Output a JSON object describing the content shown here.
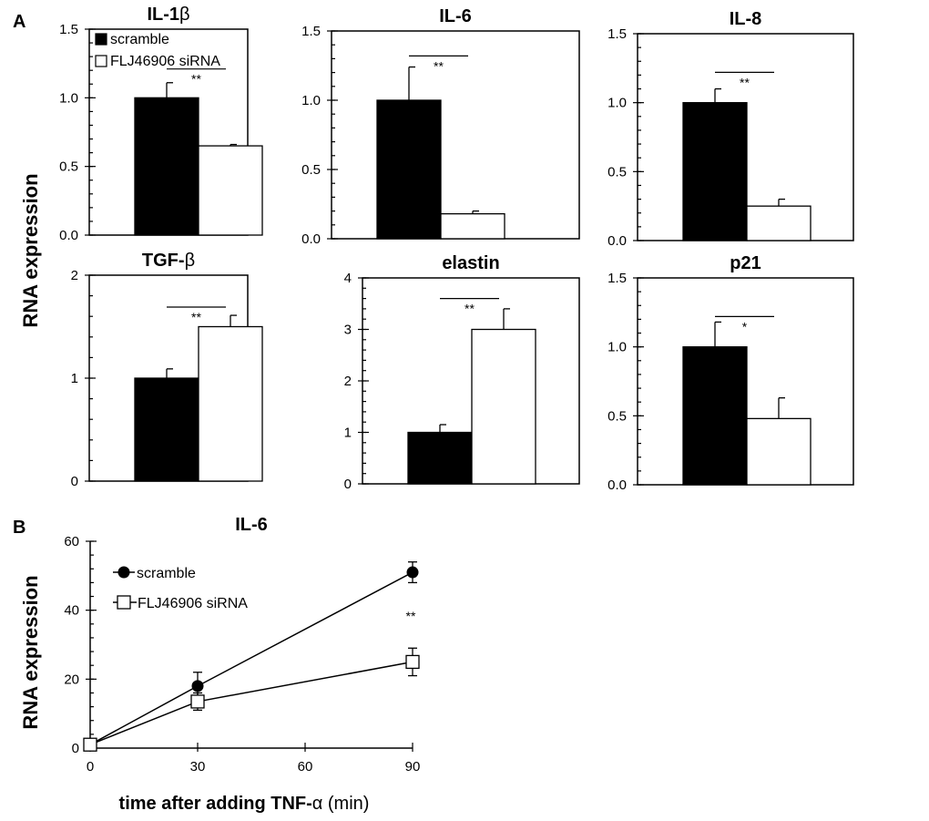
{
  "figure": {
    "panel_a_label": "A",
    "panel_b_label": "B",
    "y_axis_label": "RNA expression"
  },
  "legend_a": {
    "items": [
      {
        "label": "scramble",
        "fill": "#000000"
      },
      {
        "label": "FLJ46906 siRNA",
        "fill": "#ffffff"
      }
    ]
  },
  "chart_data": [
    {
      "type": "bar",
      "title": "IL-1",
      "title_symbol": "β",
      "categories": [
        "scramble",
        "FLJ46906 siRNA"
      ],
      "values": [
        1.0,
        0.65
      ],
      "errors": [
        0.11,
        0.01
      ],
      "ylim": [
        0,
        1.5
      ],
      "yticks": [
        "0.0",
        "0.5",
        "1.0",
        "1.5"
      ],
      "ytick_values": [
        0,
        0.5,
        1.0,
        1.5
      ],
      "minor_step": 0.1,
      "significance": "**",
      "sig_level": 1.21
    },
    {
      "type": "bar",
      "title": "IL-6",
      "title_symbol": "",
      "categories": [
        "scramble",
        "FLJ46906 siRNA"
      ],
      "values": [
        1.0,
        0.18
      ],
      "errors": [
        0.24,
        0.02
      ],
      "ylim": [
        0,
        1.5
      ],
      "yticks": [
        "0.0",
        "0.5",
        "1.0",
        "1.5"
      ],
      "ytick_values": [
        0,
        0.5,
        1.0,
        1.5
      ],
      "minor_step": 0.1,
      "significance": "**",
      "sig_level": 1.32
    },
    {
      "type": "bar",
      "title": "IL-8",
      "title_symbol": "",
      "categories": [
        "scramble",
        "FLJ46906 siRNA"
      ],
      "values": [
        1.0,
        0.25
      ],
      "errors": [
        0.1,
        0.05
      ],
      "ylim": [
        0,
        1.5
      ],
      "yticks": [
        "0.0",
        "0.5",
        "1.0",
        "1.5"
      ],
      "ytick_values": [
        0,
        0.5,
        1.0,
        1.5
      ],
      "minor_step": 0.1,
      "significance": "**",
      "sig_level": 1.22
    },
    {
      "type": "bar",
      "title": "TGF-",
      "title_symbol": "β",
      "categories": [
        "scramble",
        "FLJ46906 siRNA"
      ],
      "values": [
        1.0,
        1.5
      ],
      "errors": [
        0.09,
        0.11
      ],
      "ylim": [
        0,
        2
      ],
      "yticks": [
        "0",
        "1",
        "2"
      ],
      "ytick_values": [
        0,
        1,
        2
      ],
      "minor_step": 0.2,
      "significance": "**",
      "sig_level": 1.69
    },
    {
      "type": "bar",
      "title": "elastin",
      "title_symbol": "",
      "categories": [
        "scramble",
        "FLJ46906 siRNA"
      ],
      "values": [
        1.0,
        3.0
      ],
      "errors": [
        0.15,
        0.4
      ],
      "ylim": [
        0,
        4
      ],
      "yticks": [
        "0",
        "1",
        "2",
        "3",
        "4"
      ],
      "ytick_values": [
        0,
        1,
        2,
        3,
        4
      ],
      "minor_step": 0.2,
      "significance": "**",
      "sig_level": 3.6
    },
    {
      "type": "bar",
      "title": "p21",
      "title_symbol": "",
      "categories": [
        "scramble",
        "FLJ46906 siRNA"
      ],
      "values": [
        1.0,
        0.48
      ],
      "errors": [
        0.18,
        0.15
      ],
      "ylim": [
        0,
        1.5
      ],
      "yticks": [
        "0.0",
        "0.5",
        "1.0",
        "1.5"
      ],
      "ytick_values": [
        0,
        0.5,
        1.0,
        1.5
      ],
      "minor_step": 0.1,
      "significance": "*",
      "sig_level": 1.22
    },
    {
      "type": "line",
      "title": "IL-6",
      "x": [
        0,
        30,
        90
      ],
      "xticks": [
        0,
        30,
        60,
        90
      ],
      "xlim": [
        0,
        90
      ],
      "ylim": [
        0,
        60
      ],
      "yticks": [
        0,
        20,
        40,
        60
      ],
      "minor_step": 4,
      "xlabel_bold": "time after adding TNF-",
      "xlabel_symbol": "α",
      "xlabel_unit": " (min)",
      "ylabel": "RNA expression",
      "series": [
        {
          "name": "scramble",
          "marker": "circle",
          "values": [
            1,
            18,
            51
          ],
          "errors": [
            0,
            4,
            3
          ]
        },
        {
          "name": "FLJ46906 siRNA",
          "marker": "square",
          "values": [
            1,
            13.5,
            25
          ],
          "errors": [
            0,
            2.5,
            4
          ]
        }
      ],
      "annotation": "**"
    }
  ]
}
